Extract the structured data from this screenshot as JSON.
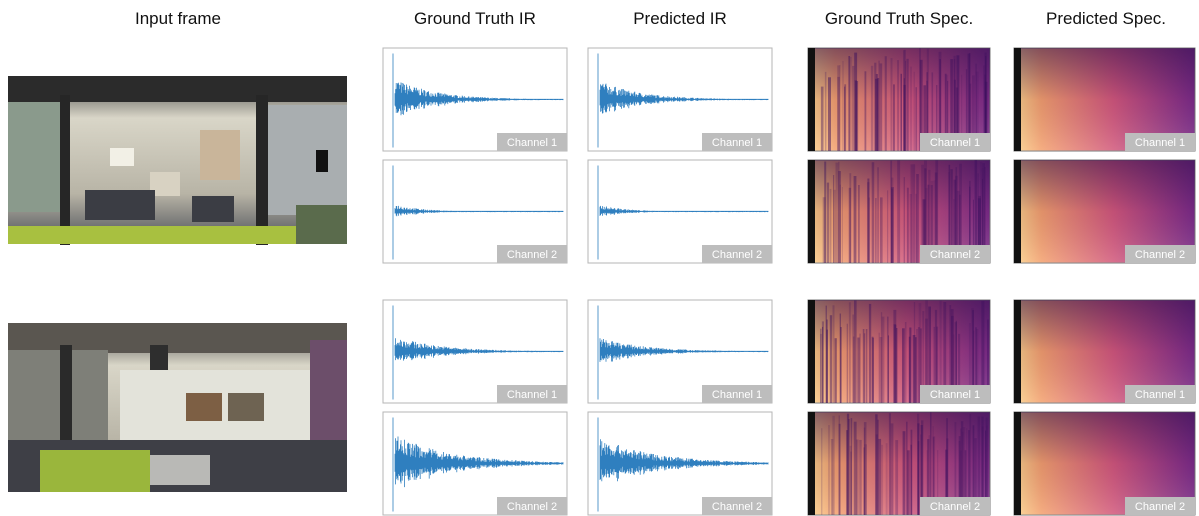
{
  "headers": [
    "Input frame",
    "Ground Truth IR",
    "Predicted IR",
    "Ground Truth Spec.",
    "Predicted Spec."
  ],
  "channel_labels": [
    "Channel 1",
    "Channel 2"
  ]
}
